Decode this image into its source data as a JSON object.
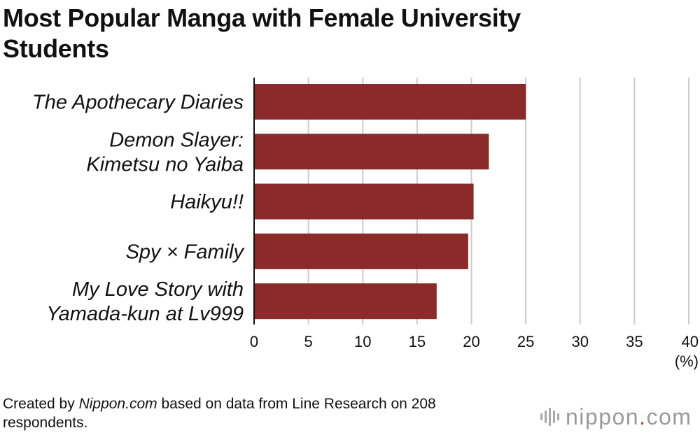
{
  "title": "Most Popular Manga with Female University Students",
  "source": {
    "prefix": "Created by ",
    "site": "Nippon.com",
    "suffix": " based on data from Line Research on 208 respondents."
  },
  "logo": {
    "name": "nippon",
    "dot": ".",
    "tld": "com",
    "icon": "nippon-sound-bars-icon"
  },
  "colors": {
    "bar": "#8b2a2a",
    "grid": "#cccccc",
    "axis": "#111111",
    "logo_gray": "#9a9a9a",
    "logo_dot": "#c0392b"
  },
  "chart_data": {
    "type": "bar",
    "orientation": "horizontal",
    "categories": [
      [
        "The Apothecary Diaries"
      ],
      [
        "Demon Slayer:",
        "Kimetsu no Yaiba"
      ],
      [
        "Haikyu!!"
      ],
      [
        "Spy × Family"
      ],
      [
        "My Love Story with",
        "Yamada-kun at Lv999"
      ]
    ],
    "values": [
      25.0,
      21.6,
      20.2,
      19.7,
      16.8
    ],
    "xlim": [
      0,
      40
    ],
    "xticks": [
      0,
      5,
      10,
      15,
      20,
      25,
      30,
      35,
      40
    ],
    "xlabel": "(%)",
    "grid": true
  }
}
